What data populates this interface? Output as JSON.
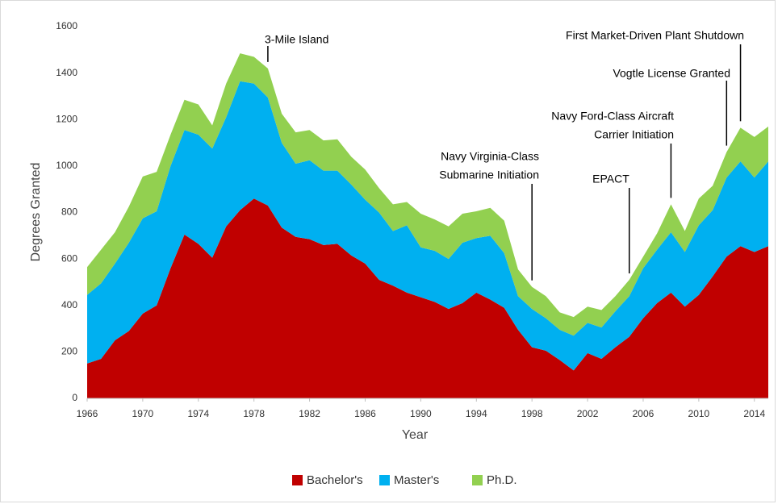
{
  "chart_data": {
    "type": "area",
    "stacked": true,
    "xlabel": "Year",
    "ylabel": "Degrees Granted",
    "x": [
      1966,
      1967,
      1968,
      1969,
      1970,
      1971,
      1972,
      1973,
      1974,
      1975,
      1976,
      1977,
      1978,
      1979,
      1980,
      1981,
      1982,
      1983,
      1984,
      1985,
      1986,
      1987,
      1988,
      1989,
      1990,
      1991,
      1992,
      1993,
      1994,
      1995,
      1996,
      1997,
      1998,
      1999,
      2000,
      2001,
      2002,
      2003,
      2004,
      2005,
      2006,
      2007,
      2008,
      2009,
      2010,
      2011,
      2012,
      2013,
      2014,
      2015
    ],
    "series": [
      {
        "name": "Bachelor's",
        "color": "#c00000",
        "values": [
          150,
          170,
          250,
          290,
          365,
          400,
          560,
          705,
          665,
          605,
          740,
          810,
          860,
          830,
          735,
          695,
          685,
          660,
          665,
          615,
          580,
          510,
          485,
          455,
          435,
          415,
          385,
          410,
          455,
          425,
          390,
          295,
          220,
          205,
          165,
          120,
          195,
          170,
          220,
          265,
          345,
          410,
          455,
          395,
          445,
          525,
          610,
          655,
          630,
          655
        ]
      },
      {
        "name": "Master's",
        "color": "#00b0f0",
        "values": [
          295,
          325,
          330,
          380,
          410,
          405,
          440,
          450,
          470,
          470,
          470,
          555,
          495,
          465,
          365,
          315,
          340,
          320,
          315,
          305,
          275,
          290,
          235,
          290,
          215,
          220,
          215,
          260,
          235,
          275,
          235,
          145,
          165,
          140,
          130,
          150,
          130,
          135,
          155,
          175,
          215,
          230,
          260,
          235,
          300,
          285,
          340,
          365,
          320,
          365
        ]
      },
      {
        "name": "Ph.D.",
        "color": "#92d050",
        "values": [
          120,
          145,
          135,
          155,
          180,
          170,
          135,
          130,
          130,
          100,
          145,
          120,
          115,
          125,
          125,
          135,
          130,
          130,
          135,
          120,
          130,
          105,
          115,
          100,
          145,
          135,
          140,
          125,
          115,
          120,
          140,
          115,
          95,
          95,
          75,
          80,
          70,
          75,
          65,
          70,
          50,
          70,
          120,
          90,
          115,
          105,
          110,
          145,
          175,
          150
        ]
      }
    ],
    "xlim": [
      1966,
      2015
    ],
    "xticks": [
      1966,
      1970,
      1974,
      1978,
      1982,
      1986,
      1990,
      1994,
      1998,
      2002,
      2006,
      2010,
      2014
    ],
    "ylim": [
      0,
      1600
    ],
    "yticks": [
      0,
      200,
      400,
      600,
      800,
      1000,
      1200,
      1400,
      1600
    ],
    "grid": false,
    "legend": "bottom",
    "annotations": [
      {
        "lines": [
          "3-Mile Island"
        ],
        "x": 1979
      },
      {
        "lines": [
          "Navy Virginia-Class",
          "Submarine Initiation"
        ],
        "x": 1998
      },
      {
        "lines": [
          "EPACT"
        ],
        "x": 2005
      },
      {
        "lines": [
          "Navy Ford-Class Aircraft",
          "Carrier Initiation"
        ],
        "x": 2008
      },
      {
        "lines": [
          "Vogtle License Granted"
        ],
        "x": 2012
      },
      {
        "lines": [
          "First Market-Driven Plant Shutdown"
        ],
        "x": 2013
      }
    ]
  }
}
